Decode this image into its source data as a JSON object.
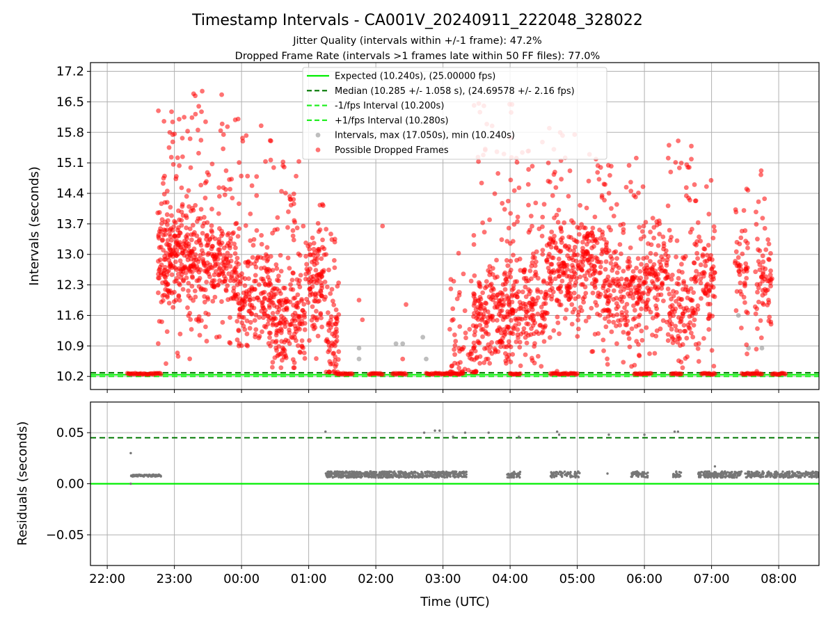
{
  "title": "Timestamp Intervals - CA001V_20240911_222048_328022",
  "subtitle_lines": [
    "Jitter Quality (intervals within +/-1 frame): 47.2%",
    "Dropped Frame Rate (intervals >1 frames late within 50 FF files): 77.0%"
  ],
  "colors": {
    "expected": "#00ee00",
    "median": "#007700",
    "interval_bounds": "#22ee22",
    "intervals": "#888888",
    "dropped": "#ff0000",
    "residuals": "#777777",
    "grid": "#b0b0b0"
  },
  "chart_data": [
    {
      "type": "scatter",
      "name": "intervals",
      "xlabel": "",
      "ylabel": "Intervals (seconds)",
      "x_unit": "hours UTC (22.0 = 22:00, 24.0 = 00:00 next day)",
      "xlim": [
        21.75,
        32.6
      ],
      "ylim": [
        9.9,
        17.4
      ],
      "yticks": [
        10.2,
        10.9,
        11.6,
        12.3,
        13.0,
        13.7,
        14.4,
        15.1,
        15.8,
        16.5,
        17.2
      ],
      "ytick_labels": [
        "10.2",
        "10.9",
        "11.6",
        "12.3",
        "13.0",
        "13.7",
        "14.4",
        "15.1",
        "15.8",
        "16.5",
        "17.2"
      ],
      "grid": true,
      "legend_position": "top-center",
      "legend": [
        {
          "label": "Expected (10.240s), (25.00000 fps)",
          "style": "solid",
          "color": "#00ee00"
        },
        {
          "label": "Median (10.285 +/- 1.058 s), (24.69578 +/- 2.16 fps)",
          "style": "dashed",
          "color": "#007700"
        },
        {
          "label": "-1/fps Interval (10.200s)",
          "style": "dashed",
          "color": "#22ee22"
        },
        {
          "label": "+1/fps Interval (10.280s)",
          "style": "dashed",
          "color": "#22ee22"
        },
        {
          "label": "Intervals, max (17.050s), min (10.240s)",
          "style": "marker",
          "color": "#888888"
        },
        {
          "label": "Possible Dropped Frames",
          "style": "marker",
          "color": "#ff0000"
        }
      ],
      "lines": {
        "expected": 10.24,
        "median": 10.285,
        "minus_fps": 10.2,
        "plus_fps": 10.28
      },
      "baseline_segments": [
        [
          22.3,
          22.8
        ],
        [
          25.4,
          25.65
        ],
        [
          25.9,
          26.1
        ],
        [
          26.25,
          26.45
        ],
        [
          26.75,
          27.3
        ],
        [
          28.0,
          28.15
        ],
        [
          28.6,
          29.0
        ],
        [
          29.85,
          30.1
        ],
        [
          30.4,
          30.55
        ],
        [
          30.85,
          31.05
        ],
        [
          31.45,
          31.75
        ],
        [
          31.9,
          32.1
        ]
      ],
      "series": [
        {
          "name": "Possible Dropped Frames",
          "clusters": [
            {
              "x": [
                22.75,
                23.25
              ],
              "y": [
                10.3,
                16.3
              ],
              "center": 12.9,
              "n": 260
            },
            {
              "x": [
                23.25,
                23.95
              ],
              "y": [
                10.8,
                16.9
              ],
              "center": 12.8,
              "n": 280
            },
            {
              "x": [
                23.95,
                24.45
              ],
              "y": [
                10.9,
                16.0
              ],
              "center": 11.9,
              "n": 180
            },
            {
              "x": [
                24.45,
                24.95
              ],
              "y": [
                10.4,
                15.2
              ],
              "center": 11.6,
              "n": 200
            },
            {
              "x": [
                24.95,
                25.25
              ],
              "y": [
                10.6,
                14.2
              ],
              "center": 12.4,
              "n": 110
            },
            {
              "x": [
                25.25,
                25.45
              ],
              "y": [
                10.3,
                13.6
              ],
              "center": 10.9,
              "n": 70
            },
            {
              "x": [
                27.1,
                27.5
              ],
              "y": [
                10.3,
                13.3
              ],
              "center": 10.8,
              "n": 60
            },
            {
              "x": [
                27.45,
                28.05
              ],
              "y": [
                10.5,
                16.6
              ],
              "center": 11.6,
              "n": 250
            },
            {
              "x": [
                28.05,
                28.55
              ],
              "y": [
                10.4,
                15.7
              ],
              "center": 11.8,
              "n": 170
            },
            {
              "x": [
                28.55,
                29.0
              ],
              "y": [
                10.3,
                16.2
              ],
              "center": 12.6,
              "n": 170
            },
            {
              "x": [
                29.0,
                29.45
              ],
              "y": [
                10.6,
                15.3
              ],
              "center": 12.8,
              "n": 170
            },
            {
              "x": [
                29.45,
                29.9
              ],
              "y": [
                10.4,
                15.9
              ],
              "center": 12.2,
              "n": 150
            },
            {
              "x": [
                29.9,
                30.35
              ],
              "y": [
                10.4,
                15.1
              ],
              "center": 12.4,
              "n": 150
            },
            {
              "x": [
                30.35,
                30.75
              ],
              "y": [
                10.4,
                16.2
              ],
              "center": 11.8,
              "n": 130
            },
            {
              "x": [
                30.75,
                31.05
              ],
              "y": [
                10.3,
                15.1
              ],
              "center": 12.4,
              "n": 90
            },
            {
              "x": [
                31.35,
                31.55
              ],
              "y": [
                10.6,
                15.3
              ],
              "center": 12.6,
              "n": 50
            },
            {
              "x": [
                31.65,
                31.9
              ],
              "y": [
                10.3,
                15.0
              ],
              "center": 12.3,
              "n": 70
            }
          ],
          "sparse": [
            [
              25.75,
              11.95
            ],
            [
              25.8,
              11.5
            ],
            [
              26.1,
              13.65
            ],
            [
              26.45,
              11.85
            ],
            [
              26.4,
              10.6
            ]
          ]
        },
        {
          "name": "Intervals",
          "points": [
            [
              22.35,
              10.24
            ],
            [
              25.75,
              10.85
            ],
            [
              25.75,
              10.6
            ],
            [
              26.3,
              10.95
            ],
            [
              26.4,
              10.95
            ],
            [
              26.7,
              11.1
            ],
            [
              26.75,
              10.6
            ],
            [
              31.4,
              11.6
            ],
            [
              31.55,
              10.85
            ],
            [
              31.75,
              10.85
            ]
          ]
        }
      ]
    },
    {
      "type": "scatter",
      "name": "residuals",
      "xlabel": "Time (UTC)",
      "ylabel": "Residuals (seconds)",
      "x_unit": "hours UTC",
      "xlim": [
        21.75,
        32.6
      ],
      "ylim": [
        -0.08,
        0.08
      ],
      "yticks": [
        -0.05,
        0.0,
        0.05
      ],
      "ytick_labels": [
        "−0.05",
        "0.00",
        "0.05"
      ],
      "xticks": [
        22,
        23,
        24,
        25,
        26,
        27,
        28,
        29,
        30,
        31,
        32
      ],
      "xtick_labels": [
        "22:00",
        "23:00",
        "00:00",
        "01:00",
        "02:00",
        "03:00",
        "04:00",
        "05:00",
        "06:00",
        "07:00",
        "08:00"
      ],
      "grid": true,
      "lines": {
        "expected": 0.0,
        "median": 0.045
      },
      "series": [
        {
          "name": "residuals",
          "bands": [
            {
              "x": [
                22.35,
                22.8
              ],
              "y": 0.008,
              "spread": 0.001,
              "n": 80
            },
            {
              "x": [
                25.25,
                27.35
              ],
              "y": 0.009,
              "spread": 0.003,
              "n": 600
            },
            {
              "x": [
                27.95,
                28.15
              ],
              "y": 0.009,
              "spread": 0.003,
              "n": 40
            },
            {
              "x": [
                28.6,
                29.05
              ],
              "y": 0.009,
              "spread": 0.003,
              "n": 60
            },
            {
              "x": [
                29.8,
                30.05
              ],
              "y": 0.009,
              "spread": 0.003,
              "n": 50
            },
            {
              "x": [
                30.4,
                30.55
              ],
              "y": 0.009,
              "spread": 0.003,
              "n": 20
            },
            {
              "x": [
                30.8,
                31.45
              ],
              "y": 0.009,
              "spread": 0.003,
              "n": 150
            },
            {
              "x": [
                31.5,
                31.85
              ],
              "y": 0.009,
              "spread": 0.003,
              "n": 70
            },
            {
              "x": [
                31.85,
                32.6
              ],
              "y": 0.009,
              "spread": 0.003,
              "n": 170
            }
          ],
          "points": [
            [
              22.35,
              0.03
            ],
            [
              22.35,
              0.0
            ],
            [
              25.25,
              0.051
            ],
            [
              26.88,
              0.052
            ],
            [
              26.95,
              0.052
            ],
            [
              26.72,
              0.05
            ],
            [
              27.15,
              0.046
            ],
            [
              27.33,
              0.05
            ],
            [
              27.68,
              0.05
            ],
            [
              28.13,
              0.046
            ],
            [
              28.7,
              0.051
            ],
            [
              28.73,
              0.048
            ],
            [
              29.47,
              0.048
            ],
            [
              29.45,
              0.01
            ],
            [
              30.0,
              0.048
            ],
            [
              30.45,
              0.051
            ],
            [
              30.5,
              0.051
            ],
            [
              31.05,
              0.017
            ],
            [
              31.2,
              0.012
            ]
          ]
        }
      ]
    }
  ]
}
